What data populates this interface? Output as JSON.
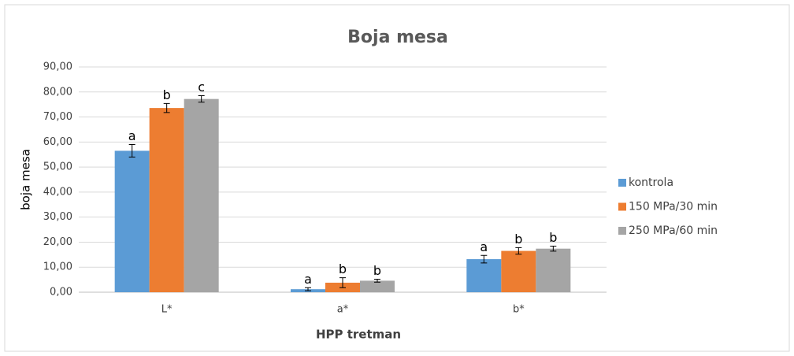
{
  "chart_data": {
    "type": "bar",
    "title": "Boja mesa",
    "x_label": "HPP tretman",
    "y_label": "boja mesa",
    "categories": [
      "L*",
      "a*",
      "b*"
    ],
    "series": [
      {
        "name": "kontrola",
        "color": "#5b9bd5",
        "values": [
          56.5,
          1.2,
          13.2
        ],
        "errors": [
          2.5,
          0.6,
          1.5
        ],
        "letters": [
          "a",
          "a",
          "a"
        ]
      },
      {
        "name": "150 MPa/30 min",
        "color": "#ed7d31",
        "values": [
          73.6,
          3.8,
          16.5
        ],
        "errors": [
          1.8,
          2.0,
          1.3
        ],
        "letters": [
          "b",
          "b",
          "b"
        ]
      },
      {
        "name": "250 MPa/60 min",
        "color": "#a5a5a5",
        "values": [
          77.2,
          4.6,
          17.4
        ],
        "errors": [
          1.3,
          0.6,
          1.0
        ],
        "letters": [
          "c",
          "b",
          "b"
        ]
      }
    ],
    "ylim": [
      0,
      90
    ],
    "yticks": [
      {
        "value": 0,
        "label": "0,00"
      },
      {
        "value": 10,
        "label": "10,00"
      },
      {
        "value": 20,
        "label": "20,00"
      },
      {
        "value": 30,
        "label": "30,00"
      },
      {
        "value": 40,
        "label": "40,00"
      },
      {
        "value": 50,
        "label": "50,00"
      },
      {
        "value": 60,
        "label": "60,00"
      },
      {
        "value": 70,
        "label": "70,00"
      },
      {
        "value": 80,
        "label": "80,00"
      },
      {
        "value": 90,
        "label": "90,00"
      }
    ],
    "grid": true,
    "legend": "right"
  }
}
